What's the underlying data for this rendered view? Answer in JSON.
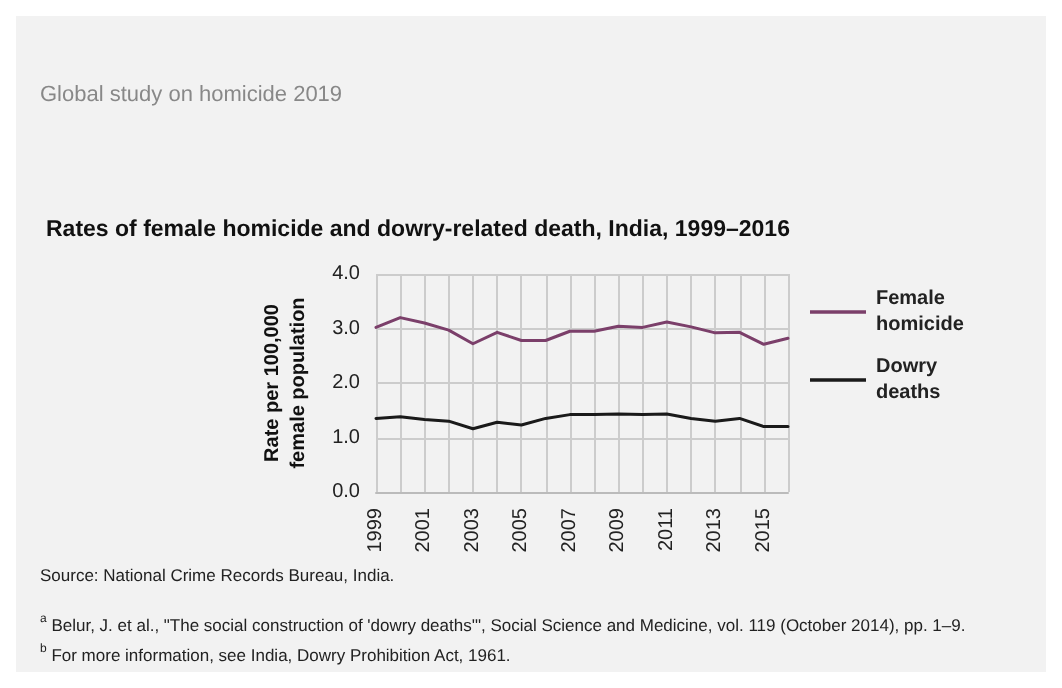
{
  "chart_data": {
    "type": "line",
    "title": "Rates of female homicide and dowry-related death, India, 1999–2016",
    "ylabel": "Rate per 100,000\nfemale population",
    "categories": [
      "1999",
      null,
      "2001",
      null,
      "2003",
      null,
      "2005",
      null,
      "2007",
      null,
      "2009",
      null,
      "2011",
      null,
      "2013",
      null,
      "2015",
      null
    ],
    "series": [
      {
        "name": "Female homicide",
        "color": "#7b3f6a",
        "values": [
          3.02,
          3.2,
          3.1,
          2.97,
          2.72,
          2.93,
          2.78,
          2.78,
          2.95,
          2.95,
          3.04,
          3.02,
          3.12,
          3.03,
          2.92,
          2.93,
          2.71,
          2.82
        ]
      },
      {
        "name": "Dowry deaths",
        "color": "#1a1a1a",
        "values": [
          1.35,
          1.38,
          1.33,
          1.3,
          1.16,
          1.28,
          1.23,
          1.35,
          1.42,
          1.42,
          1.43,
          1.42,
          1.43,
          1.35,
          1.3,
          1.35,
          1.2,
          1.2
        ]
      }
    ],
    "ylim": [
      0,
      4
    ],
    "yticks": [
      {
        "value": 0,
        "label": "0.0"
      },
      {
        "value": 1,
        "label": "1.0"
      },
      {
        "value": 2,
        "label": "2.0"
      },
      {
        "value": 3,
        "label": "3.0"
      },
      {
        "value": 4,
        "label": "4.0"
      }
    ],
    "grid": true,
    "legend": "right",
    "marker": "none",
    "annotations": [
      "Global study on homicide 2019",
      "Source: National Crime Records Bureau, India.",
      "$^{a}$ Belur, J. et al., \"The social construction of 'dowry deaths'\", Social Science and Medicine, vol. 119 (October 2014), pp. 1–9.",
      "$^{b}$ For more information, see India, Dowry Prohibition Act, 1961."
    ]
  }
}
